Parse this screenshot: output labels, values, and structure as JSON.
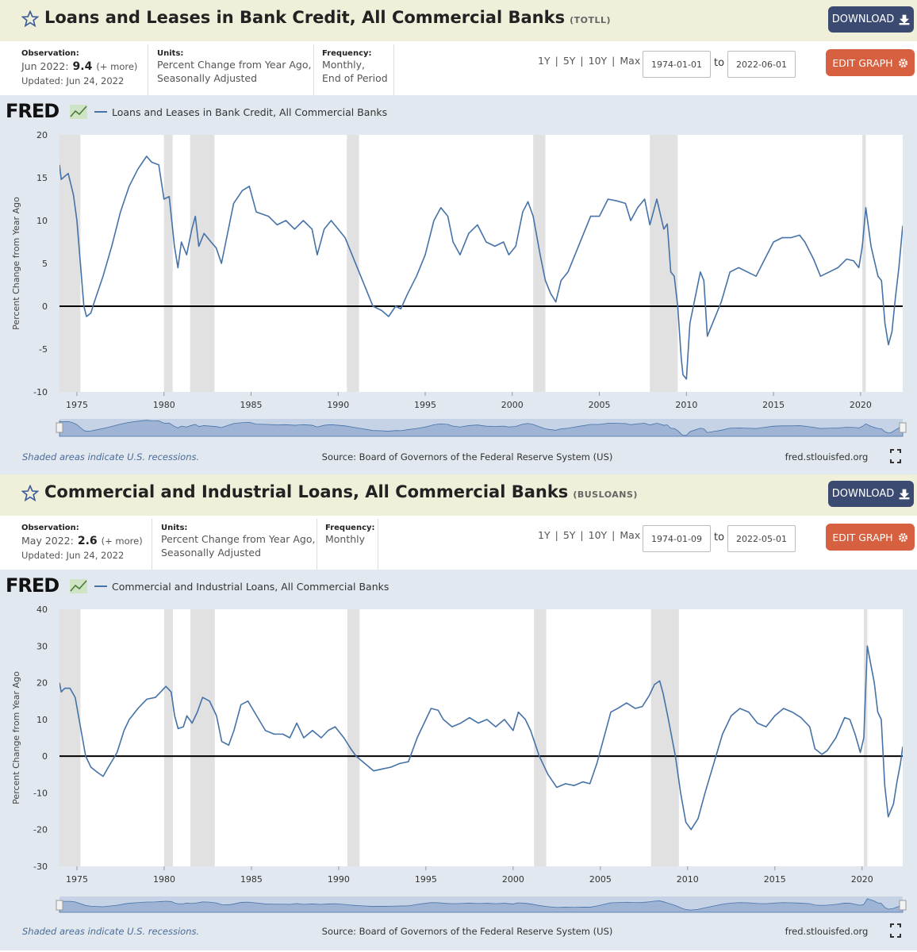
{
  "panels": [
    {
      "title": "Loans and Leases in Bank Credit, All Commercial Banks",
      "series_id": "(TOTLL)",
      "download": "DOWNLOAD",
      "observation_label": "Observation:",
      "observation_date": "Jun 2022:",
      "observation_value": "9.4",
      "more": "(+ more)",
      "updated": "Updated: Jun 24, 2022",
      "units_label": "Units:",
      "units": [
        "Percent Change from Year Ago,",
        "Seasonally Adjusted"
      ],
      "frequency_label": "Frequency:",
      "frequency": [
        "Monthly,",
        "End of Period"
      ],
      "ranges": [
        "1Y",
        "5Y",
        "10Y",
        "Max"
      ],
      "start": "1974-01-01",
      "to": "to",
      "end": "2022-06-01",
      "edit": "EDIT GRAPH",
      "logo": "FRED",
      "footnote": "Shaded areas indicate U.S. recessions.",
      "source": "Source: Board of Governors of the Federal Reserve System (US)",
      "site": "fred.stlouisfed.org"
    },
    {
      "title": "Commercial and Industrial Loans, All Commercial Banks",
      "series_id": "(BUSLOANS)",
      "download": "DOWNLOAD",
      "observation_label": "Observation:",
      "observation_date": "May 2022:",
      "observation_value": "2.6",
      "more": "(+ more)",
      "updated": "Updated: Jun 24, 2022",
      "units_label": "Units:",
      "units": [
        "Percent Change from Year Ago,",
        "Seasonally Adjusted"
      ],
      "frequency_label": "Frequency:",
      "frequency": [
        "Monthly"
      ],
      "ranges": [
        "1Y",
        "5Y",
        "10Y",
        "Max"
      ],
      "start": "1974-01-09",
      "to": "to",
      "end": "2022-05-01",
      "edit": "EDIT GRAPH",
      "logo": "FRED",
      "footnote": "Shaded areas indicate U.S. recessions.",
      "source": "Source: Board of Governors of the Federal Reserve System (US)",
      "site": "fred.stlouisfed.org"
    }
  ],
  "chart_data": [
    {
      "type": "line",
      "y_label": "Percent Change from Year Ago",
      "xlim": [
        1974,
        2022.42
      ],
      "ylim": [
        -10,
        20
      ],
      "yticks": [
        -10,
        -5,
        0,
        5,
        10,
        15,
        20
      ],
      "xticks": [
        1975,
        1980,
        1985,
        1990,
        1995,
        2000,
        2005,
        2010,
        2015,
        2020
      ],
      "reference_line": 0,
      "recession_color": "#e1e1e1",
      "recessions": [
        [
          1973.9,
          1975.2
        ],
        [
          1980.0,
          1980.5
        ],
        [
          1981.5,
          1982.9
        ],
        [
          1990.5,
          1991.2
        ],
        [
          2001.2,
          2001.9
        ],
        [
          2007.9,
          2009.5
        ],
        [
          2020.1,
          2020.3
        ]
      ],
      "x": [
        1974.0,
        1974.1,
        1974.5,
        1974.8,
        1975.0,
        1975.2,
        1975.4,
        1975.55,
        1975.8,
        1976.0,
        1976.5,
        1977.0,
        1977.5,
        1978.0,
        1978.5,
        1979.0,
        1979.3,
        1979.7,
        1980.0,
        1980.3,
        1980.6,
        1980.8,
        1981.0,
        1981.3,
        1981.6,
        1981.8,
        1982.0,
        1982.3,
        1982.7,
        1983.0,
        1983.3,
        1983.6,
        1984.0,
        1984.5,
        1984.9,
        1985.3,
        1986.0,
        1986.5,
        1987.0,
        1987.5,
        1988.0,
        1988.5,
        1988.8,
        1989.2,
        1989.6,
        1990.0,
        1990.4,
        1990.8,
        1991.2,
        1991.7,
        1992.0,
        1992.5,
        1992.9,
        1993.3,
        1993.6,
        1994.0,
        1994.5,
        1995.0,
        1995.5,
        1995.9,
        1996.3,
        1996.6,
        1997.0,
        1997.5,
        1998.0,
        1998.5,
        1999.0,
        1999.5,
        1999.8,
        2000.2,
        2000.6,
        2000.9,
        2001.2,
        2001.6,
        2001.9,
        2002.2,
        2002.5,
        2002.8,
        2003.2,
        2003.6,
        2004.0,
        2004.5,
        2005.0,
        2005.5,
        2006.0,
        2006.5,
        2006.8,
        2007.2,
        2007.6,
        2007.9,
        2008.3,
        2008.7,
        2008.9,
        2009.1,
        2009.3,
        2009.5,
        2009.7,
        2009.8,
        2010.0,
        2010.2,
        2010.5,
        2010.8,
        2011.0,
        2011.2,
        2011.6,
        2012.0,
        2012.5,
        2013.0,
        2013.5,
        2014.0,
        2014.5,
        2015.0,
        2015.5,
        2016.0,
        2016.5,
        2016.8,
        2017.3,
        2017.7,
        2018.2,
        2018.7,
        2019.2,
        2019.6,
        2019.9,
        2020.1,
        2020.3,
        2020.6,
        2021.0,
        2021.2,
        2021.4,
        2021.6,
        2021.8,
        2022.0,
        2022.2,
        2022.42
      ],
      "series": [
        {
          "name": "Loans and Leases in Bank Credit, All Commercial Banks",
          "color": "#4572a7",
          "values": [
            16.5,
            14.8,
            15.5,
            13,
            10,
            5,
            0,
            -1.2,
            -0.8,
            0.5,
            3.5,
            7,
            11,
            14,
            16,
            17.5,
            16.8,
            16.5,
            12.5,
            12.8,
            7,
            4.5,
            7.5,
            6,
            9,
            10.5,
            7,
            8.5,
            7.5,
            6.8,
            5,
            8,
            12,
            13.5,
            14,
            11,
            10.5,
            9.5,
            10,
            9,
            10,
            9,
            6,
            9,
            10,
            9,
            8,
            6,
            4,
            1.5,
            0,
            -0.5,
            -1.2,
            0,
            -0.3,
            1.5,
            3.5,
            6,
            10,
            11.5,
            10.5,
            7.5,
            6,
            8.5,
            9.5,
            7.5,
            7,
            7.5,
            6,
            7,
            11,
            12.2,
            10.5,
            6,
            3,
            1.5,
            0.5,
            3,
            4,
            6,
            8,
            10.5,
            10.5,
            12.5,
            12.3,
            12,
            10,
            11.5,
            12.5,
            9.5,
            12.5,
            9,
            9.6,
            4,
            3.5,
            0,
            -6,
            -8,
            -8.5,
            -2,
            1,
            4,
            3,
            -3.5,
            -1.5,
            0.5,
            4,
            4.5,
            4,
            3.5,
            5.5,
            7.5,
            8,
            8,
            8.3,
            7.5,
            5.5,
            3.5,
            4,
            4.5,
            5.5,
            5.3,
            4.5,
            7,
            11.5,
            7,
            3.5,
            3,
            -2,
            -4.5,
            -3,
            1,
            4.5,
            9.4
          ]
        }
      ]
    },
    {
      "type": "line",
      "y_label": "Percent Change from Year Ago",
      "xlim": [
        1974,
        2022.33
      ],
      "ylim": [
        -30,
        40
      ],
      "yticks": [
        -30,
        -20,
        -10,
        0,
        10,
        20,
        30,
        40
      ],
      "xticks": [
        1975,
        1980,
        1985,
        1990,
        1995,
        2000,
        2005,
        2010,
        2015,
        2020
      ],
      "reference_line": 0,
      "recession_color": "#e1e1e1",
      "recessions": [
        [
          1973.9,
          1975.2
        ],
        [
          1980.0,
          1980.5
        ],
        [
          1981.5,
          1982.9
        ],
        [
          1990.5,
          1991.2
        ],
        [
          2001.2,
          2001.9
        ],
        [
          2007.9,
          2009.5
        ],
        [
          2020.1,
          2020.3
        ]
      ],
      "x": [
        1974.0,
        1974.1,
        1974.3,
        1974.6,
        1974.9,
        1975.2,
        1975.5,
        1975.8,
        1976.2,
        1976.5,
        1976.8,
        1977.3,
        1977.7,
        1978.0,
        1978.5,
        1979.0,
        1979.5,
        1979.8,
        1980.1,
        1980.4,
        1980.6,
        1980.8,
        1981.1,
        1981.3,
        1981.6,
        1981.9,
        1982.2,
        1982.6,
        1983.0,
        1983.3,
        1983.7,
        1984.0,
        1984.4,
        1984.8,
        1985.3,
        1985.8,
        1986.3,
        1986.8,
        1987.2,
        1987.6,
        1988.0,
        1988.5,
        1989.0,
        1989.4,
        1989.8,
        1990.3,
        1990.7,
        1991.0,
        1991.5,
        1992.0,
        1992.5,
        1993.0,
        1993.5,
        1994.0,
        1994.5,
        1995.0,
        1995.3,
        1995.7,
        1996.0,
        1996.5,
        1997.0,
        1997.5,
        1998.0,
        1998.5,
        1999.0,
        1999.5,
        2000.0,
        2000.3,
        2000.7,
        2001.0,
        2001.5,
        2002.0,
        2002.5,
        2003.0,
        2003.5,
        2004.0,
        2004.4,
        2004.8,
        2005.2,
        2005.6,
        2006.0,
        2006.5,
        2007.0,
        2007.4,
        2007.8,
        2008.1,
        2008.4,
        2008.6,
        2008.9,
        2009.3,
        2009.6,
        2009.9,
        2010.2,
        2010.6,
        2011.0,
        2011.5,
        2012.0,
        2012.5,
        2013.0,
        2013.5,
        2014.0,
        2014.5,
        2015.0,
        2015.5,
        2016.0,
        2016.5,
        2017.0,
        2017.3,
        2017.7,
        2018.0,
        2018.5,
        2019.0,
        2019.3,
        2019.6,
        2019.9,
        2020.1,
        2020.3,
        2020.7,
        2020.9,
        2021.1,
        2021.3,
        2021.5,
        2021.8,
        2022.0,
        2022.2,
        2022.33
      ],
      "series": [
        {
          "name": "Commercial and Industrial Loans, All Commercial Banks",
          "color": "#4572a7",
          "values": [
            20,
            17.5,
            18.5,
            18.5,
            16,
            8,
            0,
            -3,
            -4.5,
            -5.5,
            -3,
            1,
            7,
            10,
            13,
            15.5,
            16,
            17.5,
            19,
            17.5,
            11,
            7.5,
            8,
            11,
            9,
            12,
            16,
            15,
            11,
            4,
            3,
            7,
            14,
            15,
            11,
            7,
            6,
            6,
            5,
            9,
            5,
            7,
            5,
            7,
            8,
            5,
            2,
            0,
            -2,
            -4,
            -3.5,
            -3,
            -2,
            -1.5,
            5,
            10,
            13,
            12.5,
            10,
            8,
            9,
            10.5,
            9,
            10,
            8,
            10,
            7,
            12,
            10,
            7,
            0,
            -5,
            -8.5,
            -7.5,
            -8,
            -7,
            -7.5,
            -2,
            5,
            12,
            13,
            14.5,
            13,
            13.5,
            16.5,
            19.5,
            20.5,
            17,
            10,
            0,
            -10,
            -18,
            -20,
            -17,
            -10,
            -2,
            6,
            11,
            13,
            12,
            9,
            8,
            11,
            13,
            12,
            10.5,
            8,
            2,
            0.5,
            1.5,
            5,
            10.5,
            10,
            6,
            1,
            5,
            30,
            20,
            12,
            10,
            -8,
            -16.5,
            -13,
            -7,
            -2,
            2.6
          ]
        }
      ]
    }
  ]
}
